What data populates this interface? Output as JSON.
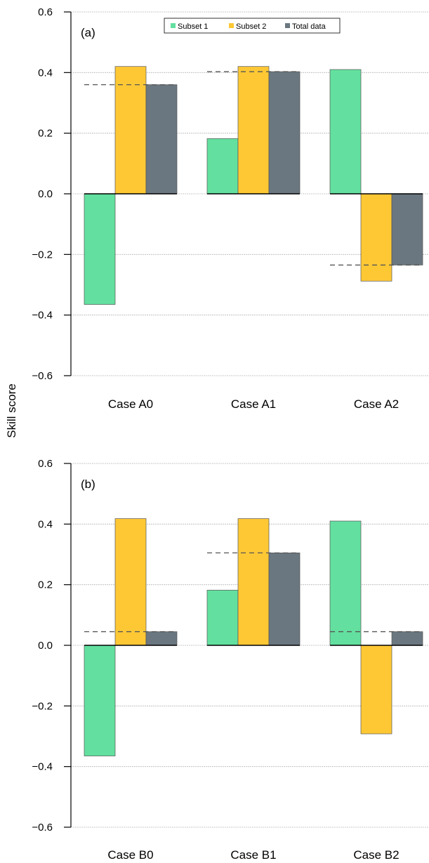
{
  "y_axis_title": "Skill score",
  "legend": [
    {
      "label": "Subset 1",
      "color": "#63e09f"
    },
    {
      "label": "Subset 2",
      "color": "#fec835"
    },
    {
      "label": "Total data",
      "color": "#6a7780"
    }
  ],
  "chart_data": [
    {
      "type": "bar",
      "panel_label": "(a)",
      "categories": [
        "Case A0",
        "Case A1",
        "Case A2"
      ],
      "series": [
        {
          "name": "Subset 1",
          "values": [
            -0.365,
            0.182,
            0.41
          ]
        },
        {
          "name": "Subset 2",
          "values": [
            0.42,
            0.42,
            -0.288
          ]
        },
        {
          "name": "Total data",
          "values": [
            0.36,
            0.403,
            -0.235
          ]
        }
      ],
      "reference_lines": [
        0.36,
        0.403,
        -0.235
      ],
      "ylim": [
        -0.6,
        0.6
      ],
      "yticks": [
        "0.6",
        "0.4",
        "0.2",
        "0.0",
        "−0.2",
        "−0.4",
        "−0.6"
      ],
      "grid": true,
      "legend_position": "top"
    },
    {
      "type": "bar",
      "panel_label": "(b)",
      "categories": [
        "Case B0",
        "Case B1",
        "Case B2"
      ],
      "series": [
        {
          "name": "Subset 1",
          "values": [
            -0.365,
            0.182,
            0.41
          ]
        },
        {
          "name": "Subset 2",
          "values": [
            0.418,
            0.418,
            -0.292
          ]
        },
        {
          "name": "Total data",
          "values": [
            0.045,
            0.305,
            0.045
          ]
        }
      ],
      "reference_lines": [
        0.045,
        0.305,
        0.045
      ],
      "ylim": [
        -0.6,
        0.6
      ],
      "yticks": [
        "0.6",
        "0.4",
        "0.2",
        "0.0",
        "−0.2",
        "−0.4",
        "−0.6"
      ],
      "grid": true
    }
  ]
}
